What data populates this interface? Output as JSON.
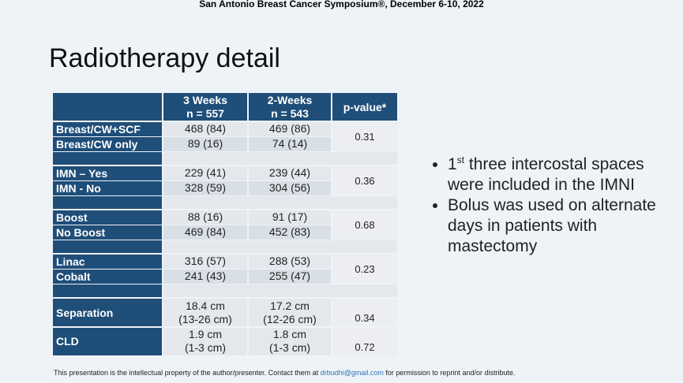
{
  "header": "San Antonio Breast Cancer Symposium®, December 6-10, 2022",
  "title": "Radiotherapy detail",
  "table": {
    "columns": [
      {
        "title": "3 Weeks",
        "n": "n = 557"
      },
      {
        "title": "2-Weeks",
        "n": "n = 543"
      }
    ],
    "p_header": "p-value*",
    "groups": [
      {
        "rows": [
          {
            "label": "Breast/CW+SCF",
            "cells": [
              [
                "468 (84)"
              ],
              [
                "469 (86)"
              ]
            ]
          },
          {
            "label": "Breast/CW only",
            "cells": [
              [
                "89 (16)"
              ],
              [
                "74 (14)"
              ]
            ]
          }
        ],
        "p_value": "0.31"
      },
      {
        "rows": [
          {
            "label": "IMN – Yes",
            "cells": [
              [
                "229 (41)"
              ],
              [
                "239 (44)"
              ]
            ]
          },
          {
            "label": "IMN - No",
            "cells": [
              [
                "328 (59)"
              ],
              [
                "304 (56)"
              ]
            ]
          }
        ],
        "p_value": "0.36"
      },
      {
        "rows": [
          {
            "label": "Boost",
            "cells": [
              [
                "88 (16)"
              ],
              [
                "91 (17)"
              ]
            ]
          },
          {
            "label": "No Boost",
            "cells": [
              [
                "469 (84)"
              ],
              [
                "452 (83)"
              ]
            ]
          }
        ],
        "p_value": "0.68"
      },
      {
        "rows": [
          {
            "label": "Linac",
            "cells": [
              [
                "316 (57)"
              ],
              [
                "288 (53)"
              ]
            ]
          },
          {
            "label": "Cobalt",
            "cells": [
              [
                "241 (43)"
              ],
              [
                "255 (47)"
              ]
            ]
          }
        ],
        "p_value": "0.23"
      },
      {
        "rows": [
          {
            "label": "Separation",
            "cells": [
              [
                "18.4 cm",
                "(13-26 cm)"
              ],
              [
                "17.2 cm",
                "(12-26 cm)"
              ]
            ]
          }
        ],
        "p_value": "0.34"
      },
      {
        "rows": [
          {
            "label": "CLD",
            "cells": [
              [
                "1.9 cm",
                "(1-3 cm)"
              ],
              [
                "1.8 cm",
                "(1-3 cm)"
              ]
            ]
          }
        ],
        "p_value": "0.72"
      }
    ]
  },
  "bullets": [
    {
      "prefix": "1",
      "sup": "st",
      "text": "three intercostal spaces were included in the IMNI"
    },
    {
      "text": "Bolus was used on alternate days in patients with mastectomy"
    }
  ],
  "footer": {
    "before": "This presentation is the intellectual property of the author/presenter. Contact them at",
    "email": "drbudhi@gmail.com",
    "after": "for permission to reprint and/or distribute."
  }
}
